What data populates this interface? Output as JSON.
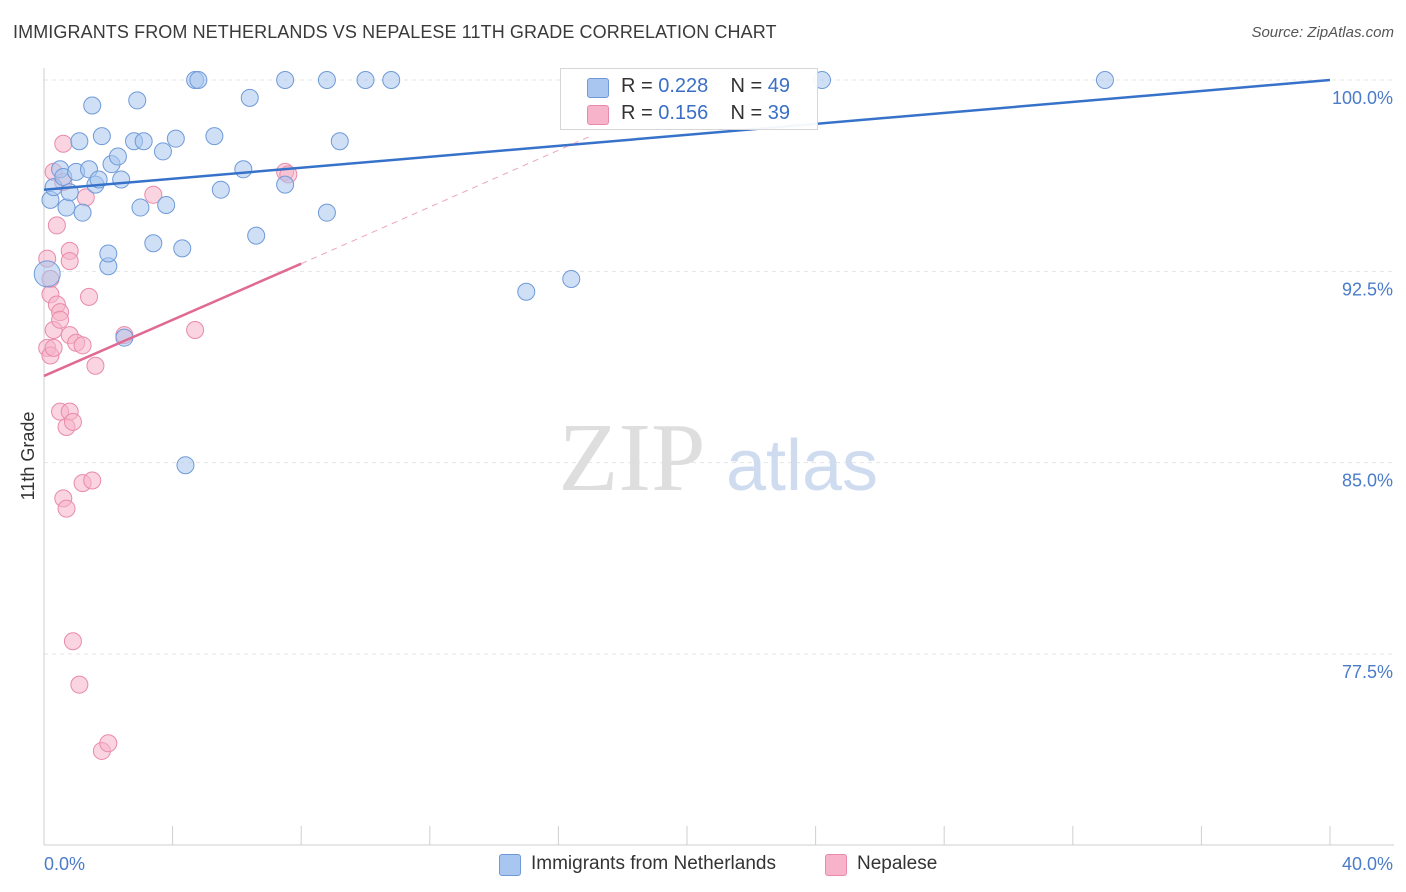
{
  "header": {
    "title": "IMMIGRANTS FROM NETHERLANDS VS NEPALESE 11TH GRADE CORRELATION CHART",
    "source": "Source: ZipAtlas.com"
  },
  "watermark": {
    "zip": "ZIP",
    "atlas": "atlas"
  },
  "legend": {
    "rows": [
      {
        "r_label": "R = ",
        "r_value": "0.228",
        "n_label": "N = ",
        "n_value": "49",
        "color": "#a8c6ef"
      },
      {
        "r_label": "R = ",
        "r_value": "0.156",
        "n_label": "N = ",
        "n_value": "39",
        "color": "#f6b3c9"
      }
    ]
  },
  "colors": {
    "blue_fill": "#a8c6ef",
    "blue_stroke": "#6f9ad8",
    "blue_line": "#3672c9",
    "pink_fill": "#f6b3c9",
    "pink_stroke": "#e98aaa",
    "pink_line": "#e06a94",
    "tick_label": "#4a7cc9",
    "grid": "#e5e5e5"
  },
  "chart_data": {
    "type": "scatter",
    "title": "IMMIGRANTS FROM NETHERLANDS VS NEPALESE 11TH GRADE CORRELATION CHART",
    "xlabel": "",
    "ylabel": "11th Grade",
    "xlim": [
      0,
      40
    ],
    "ylim": [
      71.5,
      100.7
    ],
    "x_tick_labels": [
      "0.0%",
      "40.0%"
    ],
    "y_ticks": [
      {
        "value": 100.0,
        "label": "100.0%"
      },
      {
        "value": 92.5,
        "label": "92.5%"
      },
      {
        "value": 85.0,
        "label": "85.0%"
      },
      {
        "value": 77.5,
        "label": "77.5%"
      }
    ],
    "series": [
      {
        "name": "Immigrants from Netherlands",
        "color": "#a8c6ef",
        "trend": {
          "x": [
            0,
            40
          ],
          "y": [
            95.7,
            100.0
          ]
        },
        "points": [
          [
            0.1,
            92.4
          ],
          [
            0.2,
            95.3
          ],
          [
            0.3,
            95.8
          ],
          [
            0.5,
            96.5
          ],
          [
            0.6,
            96.2
          ],
          [
            0.7,
            95.0
          ],
          [
            0.8,
            95.6
          ],
          [
            1.0,
            96.4
          ],
          [
            1.1,
            97.6
          ],
          [
            1.2,
            94.8
          ],
          [
            1.4,
            96.5
          ],
          [
            1.5,
            99.0
          ],
          [
            1.6,
            95.9
          ],
          [
            1.7,
            96.1
          ],
          [
            1.8,
            97.8
          ],
          [
            2.0,
            92.7
          ],
          [
            2.0,
            93.2
          ],
          [
            2.1,
            96.7
          ],
          [
            2.3,
            97.0
          ],
          [
            2.4,
            96.1
          ],
          [
            2.5,
            89.9
          ],
          [
            2.8,
            97.6
          ],
          [
            2.9,
            99.2
          ],
          [
            3.0,
            95.0
          ],
          [
            3.1,
            97.6
          ],
          [
            3.4,
            93.6
          ],
          [
            3.7,
            97.2
          ],
          [
            3.8,
            95.1
          ],
          [
            4.1,
            97.7
          ],
          [
            4.3,
            93.4
          ],
          [
            4.4,
            84.9
          ],
          [
            4.7,
            100.0
          ],
          [
            4.8,
            100.0
          ],
          [
            5.3,
            97.8
          ],
          [
            5.5,
            95.7
          ],
          [
            6.2,
            96.5
          ],
          [
            6.4,
            99.3
          ],
          [
            6.6,
            93.9
          ],
          [
            7.5,
            95.9
          ],
          [
            7.5,
            100.0
          ],
          [
            8.8,
            94.8
          ],
          [
            8.8,
            100.0
          ],
          [
            9.2,
            97.6
          ],
          [
            10.0,
            100.0
          ],
          [
            10.8,
            100.0
          ],
          [
            15.0,
            91.7
          ],
          [
            16.4,
            92.2
          ],
          [
            24.2,
            100.0
          ],
          [
            33.0,
            100.0
          ]
        ]
      },
      {
        "name": "Nepalese",
        "color": "#f6b3c9",
        "trend": {
          "x": [
            0,
            8.0
          ],
          "y": [
            88.4,
            92.8
          ]
        },
        "trend_dashed": {
          "x": [
            8.0,
            17.0
          ],
          "y": [
            92.8,
            97.8
          ]
        },
        "points": [
          [
            0.1,
            89.5
          ],
          [
            0.1,
            93.0
          ],
          [
            0.2,
            92.2
          ],
          [
            0.2,
            91.6
          ],
          [
            0.2,
            89.2
          ],
          [
            0.3,
            96.4
          ],
          [
            0.3,
            90.2
          ],
          [
            0.3,
            89.5
          ],
          [
            0.4,
            94.3
          ],
          [
            0.4,
            91.2
          ],
          [
            0.5,
            90.9
          ],
          [
            0.5,
            90.6
          ],
          [
            0.5,
            87.0
          ],
          [
            0.6,
            97.5
          ],
          [
            0.6,
            96.0
          ],
          [
            0.6,
            83.6
          ],
          [
            0.7,
            86.4
          ],
          [
            0.7,
            83.2
          ],
          [
            0.8,
            90.0
          ],
          [
            0.8,
            93.3
          ],
          [
            0.8,
            92.9
          ],
          [
            0.8,
            87.0
          ],
          [
            0.9,
            86.6
          ],
          [
            0.9,
            78.0
          ],
          [
            1.0,
            89.7
          ],
          [
            1.1,
            76.3
          ],
          [
            1.2,
            89.6
          ],
          [
            1.2,
            84.2
          ],
          [
            1.3,
            95.4
          ],
          [
            1.4,
            91.5
          ],
          [
            1.5,
            84.3
          ],
          [
            1.6,
            88.8
          ],
          [
            1.8,
            73.7
          ],
          [
            2.0,
            74.0
          ],
          [
            2.5,
            90.0
          ],
          [
            3.4,
            95.5
          ],
          [
            4.7,
            90.2
          ],
          [
            7.5,
            96.4
          ],
          [
            7.6,
            96.3
          ]
        ]
      }
    ]
  },
  "bottom_legend": [
    {
      "label": "Immigrants from Netherlands",
      "color": "#a8c6ef"
    },
    {
      "label": "Nepalese",
      "color": "#f6b3c9"
    }
  ]
}
